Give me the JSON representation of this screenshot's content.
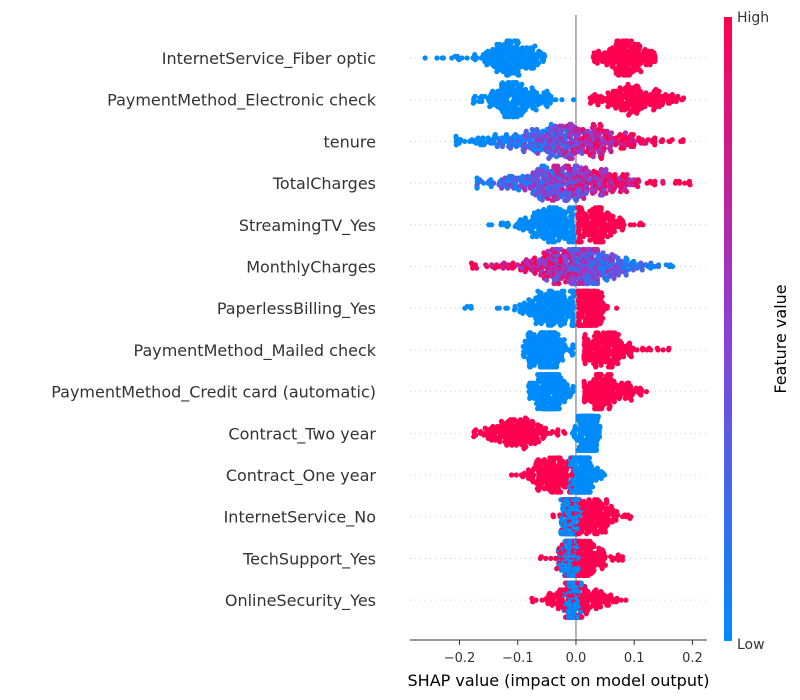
{
  "chart_data": {
    "type": "beeswarm",
    "xlabel": "SHAP value (impact on model output)",
    "xlim": [
      -0.285,
      0.225
    ],
    "xticks": [
      -0.2,
      -0.1,
      0.0,
      0.1,
      0.2
    ],
    "xtick_labels": [
      "−0.2",
      "−0.1",
      "0.0",
      "0.1",
      "0.2"
    ],
    "colorbar": {
      "label": "Feature value",
      "high_label": "High",
      "low_label": "Low",
      "low_color": "#008bfb",
      "high_color": "#ff0051"
    },
    "zero_line": true,
    "features": [
      {
        "name": "InternetService_Fiber optic",
        "binary": true,
        "low": {
          "min": -0.26,
          "max": -0.055,
          "peak": -0.11,
          "sd": 0.028
        },
        "high": {
          "min": 0.03,
          "max": 0.135,
          "peak": 0.09,
          "sd": 0.022
        }
      },
      {
        "name": "PaymentMethod_Electronic check",
        "binary": true,
        "low": {
          "min": -0.175,
          "max": -0.005,
          "peak": -0.11,
          "sd": 0.03
        },
        "high": {
          "min": 0.025,
          "max": 0.185,
          "peak": 0.1,
          "sd": 0.035
        }
      },
      {
        "name": "tenure",
        "binary": false,
        "min": -0.205,
        "max": 0.185,
        "peak": -0.02,
        "sd": 0.07,
        "corr": 1
      },
      {
        "name": "TotalCharges",
        "binary": false,
        "min": -0.17,
        "max": 0.195,
        "peak": -0.02,
        "sd": 0.06,
        "corr": 0.7
      },
      {
        "name": "StreamingTV_Yes",
        "binary": true,
        "low": {
          "min": -0.15,
          "max": -0.005,
          "peak": -0.04,
          "sd": 0.025
        },
        "high": {
          "min": 0.005,
          "max": 0.115,
          "peak": 0.03,
          "sd": 0.022
        }
      },
      {
        "name": "MonthlyCharges",
        "binary": false,
        "min": -0.18,
        "max": 0.165,
        "peak": 0.0,
        "sd": 0.05,
        "corr": -0.8
      },
      {
        "name": "PaperlessBilling_Yes",
        "binary": true,
        "low": {
          "min": -0.19,
          "max": -0.005,
          "peak": -0.04,
          "sd": 0.03
        },
        "high": {
          "min": 0.005,
          "max": 0.07,
          "peak": 0.02,
          "sd": 0.014
        }
      },
      {
        "name": "PaymentMethod_Mailed check",
        "binary": true,
        "low": {
          "min": -0.09,
          "max": -0.005,
          "peak": -0.05,
          "sd": 0.018
        },
        "high": {
          "min": 0.015,
          "max": 0.16,
          "peak": 0.05,
          "sd": 0.03
        }
      },
      {
        "name": "PaymentMethod_Credit card (automatic)",
        "binary": true,
        "low": {
          "min": -0.08,
          "max": -0.005,
          "peak": -0.045,
          "sd": 0.017
        },
        "high": {
          "min": 0.015,
          "max": 0.12,
          "peak": 0.05,
          "sd": 0.023
        }
      },
      {
        "name": "Contract_Two year",
        "binary": true,
        "low": {
          "min": -0.005,
          "max": 0.04,
          "peak": 0.02,
          "sd": 0.009
        },
        "high": {
          "min": -0.175,
          "max": -0.02,
          "peak": -0.1,
          "sd": 0.03
        }
      },
      {
        "name": "Contract_One year",
        "binary": true,
        "low": {
          "min": -0.01,
          "max": 0.05,
          "peak": 0.01,
          "sd": 0.011
        },
        "high": {
          "min": -0.11,
          "max": -0.005,
          "peak": -0.04,
          "sd": 0.02
        }
      },
      {
        "name": "InternetService_No",
        "binary": true,
        "low": {
          "min": -0.025,
          "max": 0.01,
          "peak": -0.01,
          "sd": 0.007
        },
        "high": {
          "min": -0.04,
          "max": 0.095,
          "peak": 0.03,
          "sd": 0.025
        }
      },
      {
        "name": "TechSupport_Yes",
        "binary": true,
        "low": {
          "min": -0.03,
          "max": 0.005,
          "peak": -0.008,
          "sd": 0.006
        },
        "high": {
          "min": -0.06,
          "max": 0.08,
          "peak": 0.01,
          "sd": 0.025
        }
      },
      {
        "name": "OnlineSecurity_Yes",
        "binary": true,
        "low": {
          "min": -0.02,
          "max": 0.01,
          "peak": -0.005,
          "sd": 0.006
        },
        "high": {
          "min": -0.075,
          "max": 0.085,
          "peak": 0.005,
          "sd": 0.028
        }
      }
    ]
  }
}
